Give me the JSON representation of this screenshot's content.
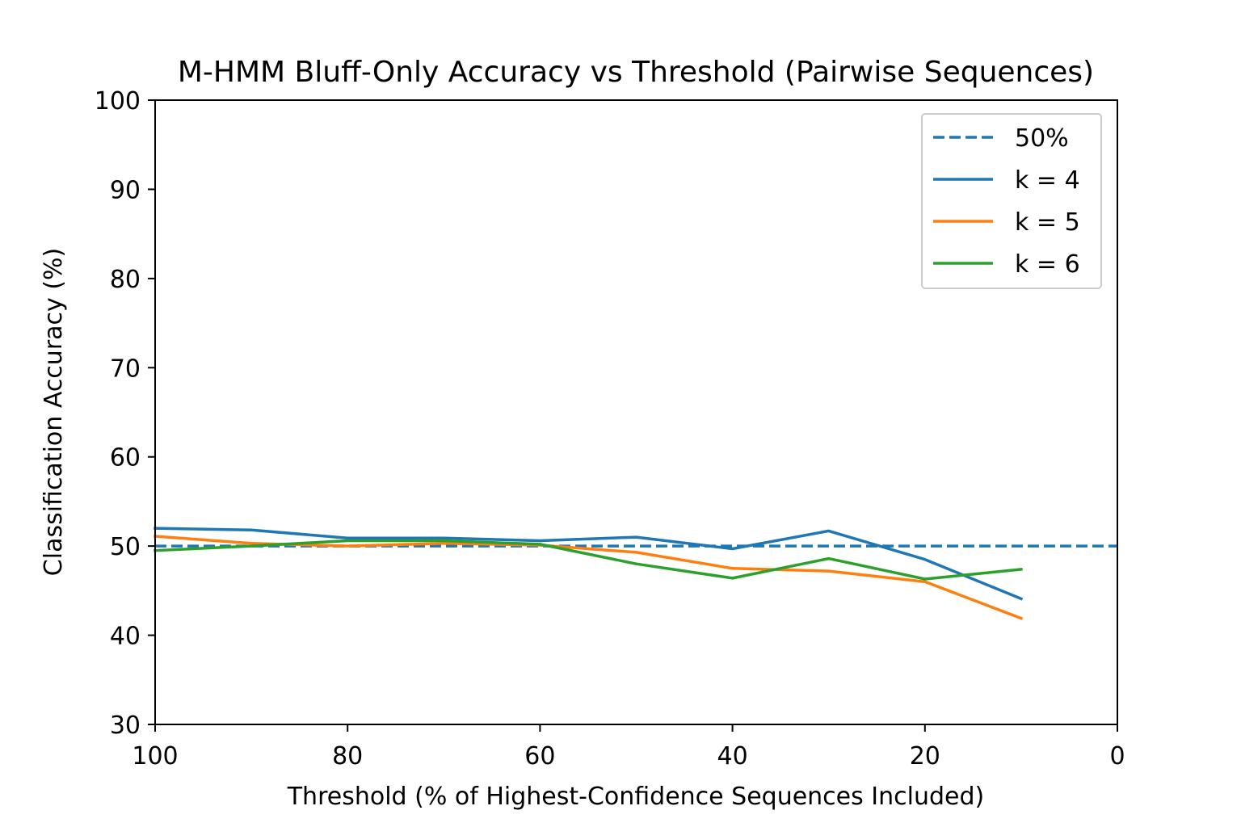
{
  "chart_data": {
    "type": "line",
    "title": "M-HMM Bluff-Only Accuracy vs Threshold (Pairwise Sequences)",
    "xlabel": "Threshold (% of Highest-Confidence Sequences Included)",
    "ylabel": "Classification Accuracy (%)",
    "xlim": [
      100,
      0
    ],
    "ylim": [
      30,
      100
    ],
    "x_reversed": true,
    "xticks": [
      100,
      80,
      60,
      40,
      20,
      0
    ],
    "yticks": [
      30,
      40,
      50,
      60,
      70,
      80,
      90,
      100
    ],
    "grid": false,
    "legend_position": "top-right",
    "reference_line": {
      "name": "50%",
      "y": 50,
      "style": "dashed",
      "color": "#1f77b4"
    },
    "x": [
      100,
      90,
      80,
      70,
      60,
      50,
      40,
      30,
      20,
      10
    ],
    "series": [
      {
        "name": "k = 4",
        "color": "#1f77b4",
        "values": [
          52.0,
          51.8,
          50.9,
          50.9,
          50.6,
          51.0,
          49.7,
          51.7,
          48.5,
          44.1
        ]
      },
      {
        "name": "k = 5",
        "color": "#ff7f0e",
        "values": [
          51.1,
          50.3,
          50.0,
          50.3,
          50.1,
          49.3,
          47.5,
          47.2,
          46.0,
          41.9
        ]
      },
      {
        "name": "k = 6",
        "color": "#2ca02c",
        "values": [
          49.5,
          50.0,
          50.6,
          50.6,
          50.2,
          48.0,
          46.4,
          48.6,
          46.3,
          47.4
        ]
      }
    ]
  }
}
